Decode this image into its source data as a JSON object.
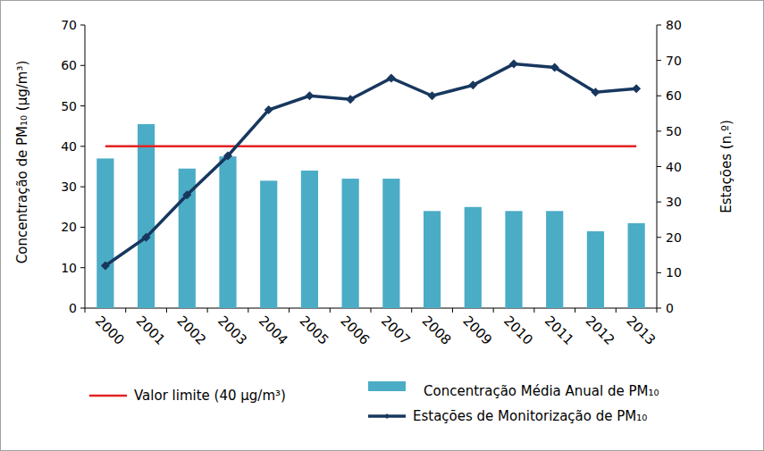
{
  "chart_data": {
    "type": "bar",
    "y_label": "Concentração de PM₁₀ (µg/m³)",
    "y2_label": "Estações (n.º)",
    "categories": [
      "2000",
      "2001",
      "2002",
      "2003",
      "2004",
      "2005",
      "2006",
      "2007",
      "2008",
      "2009",
      "2010",
      "2011",
      "2012",
      "2013"
    ],
    "series": [
      {
        "name": "Valor limite (40 µg/m³)",
        "type": "line",
        "color": "#e32222",
        "values": [
          40,
          40,
          40,
          40,
          40,
          40,
          40,
          40,
          40,
          40,
          40,
          40,
          40,
          40
        ]
      },
      {
        "name": "Concentração Média Anual de PM₁₀",
        "type": "bar",
        "color": "#4bacc6",
        "values": [
          37,
          45.5,
          34.5,
          37.5,
          31.5,
          34,
          32,
          32,
          24,
          25,
          24,
          24,
          19,
          21
        ]
      },
      {
        "name": "Estações de Monitorização de PM₁₀",
        "type": "line",
        "color": "#17375e",
        "marker": "diamond",
        "axis": "y2",
        "values": [
          12,
          20,
          32,
          43,
          56,
          60,
          59,
          65,
          60,
          63,
          69,
          68,
          61,
          62
        ]
      }
    ],
    "ylim": [
      0,
      70
    ],
    "yticks": [
      0,
      10,
      20,
      30,
      40,
      50,
      60,
      70
    ],
    "y2lim": [
      0,
      80
    ],
    "y2ticks": [
      0,
      10,
      20,
      30,
      40,
      50,
      60,
      70,
      80
    ],
    "grid": false,
    "legend": "bottom"
  }
}
